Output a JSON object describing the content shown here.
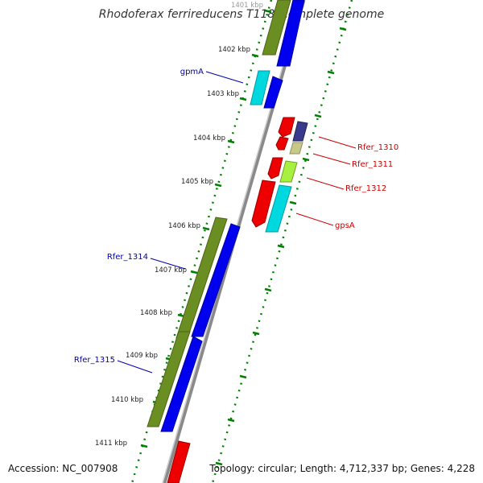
{
  "title": "Rhodoferax ferrireducens T118, complete genome",
  "accession": "Accession: NC_007908",
  "topology": "Topology: circular; Length: 4,712,337 bp; Genes: 4,228",
  "kbp_ticks": [
    "1401 kbp",
    "1402 kbp",
    "1403 kbp",
    "1404 kbp",
    "1405 kbp",
    "1406 kbp",
    "1407 kbp",
    "1408 kbp",
    "1409 kbp",
    "1410 kbp",
    "1411 kbp"
  ],
  "gene_labels": {
    "left": [
      "gpmA",
      "Rfer_1314",
      "Rfer_1315"
    ],
    "right": [
      "Rfer_1310",
      "Rfer_1311",
      "Rfer_1312",
      "gpsA"
    ]
  },
  "colors": {
    "left_label": "#0000aa",
    "right_label": "#cc0000",
    "olive": "#6b8e23",
    "blue": "#0000ee",
    "cyan": "#00d8e0",
    "red": "#ee0000",
    "navy": "#3a3a8c",
    "khaki": "#c8c888",
    "lime": "#a8f040",
    "tick": "#008000",
    "backbone": "#8a8a8a"
  }
}
